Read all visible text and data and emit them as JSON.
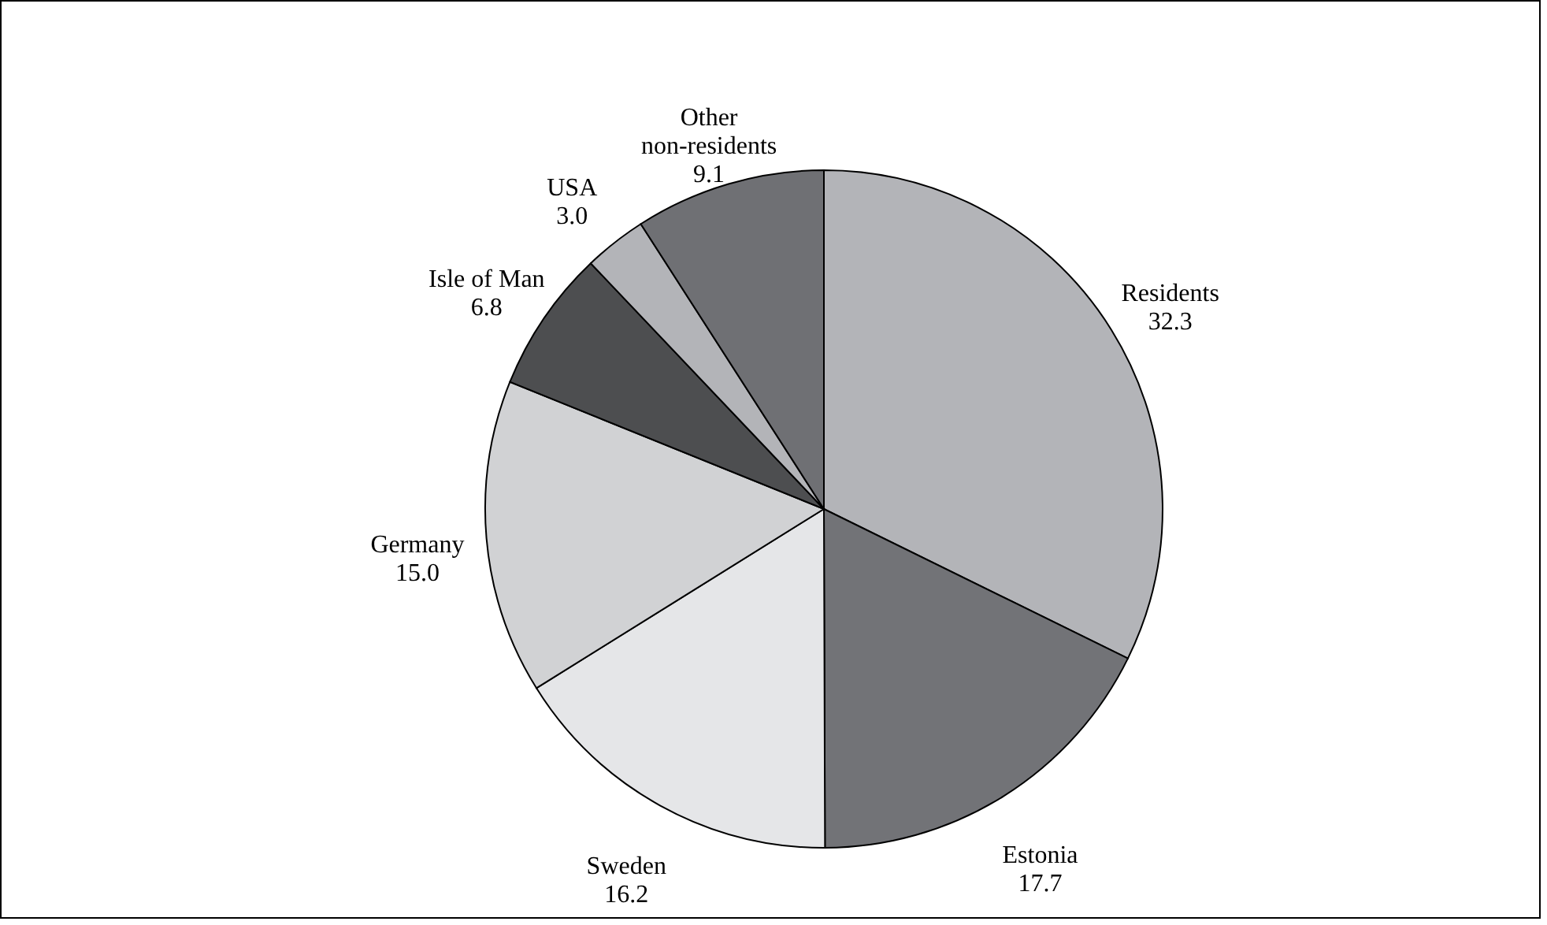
{
  "chart_data": {
    "type": "pie",
    "categories": [
      "Residents",
      "Estonia",
      "Sweden",
      "Germany",
      "Isle of Man",
      "USA",
      "Other non-residents"
    ],
    "values": [
      32.3,
      17.7,
      16.2,
      15.0,
      6.8,
      3.0,
      9.1
    ],
    "value_labels": [
      "32.3",
      "17.7",
      "16.2",
      "15.0",
      "6.8",
      "3.0",
      "9.1"
    ],
    "colors": [
      "#b3b4b8",
      "#727377",
      "#e5e6e8",
      "#d1d2d4",
      "#4d4e50",
      "#b3b4b8",
      "#6f7074"
    ]
  }
}
